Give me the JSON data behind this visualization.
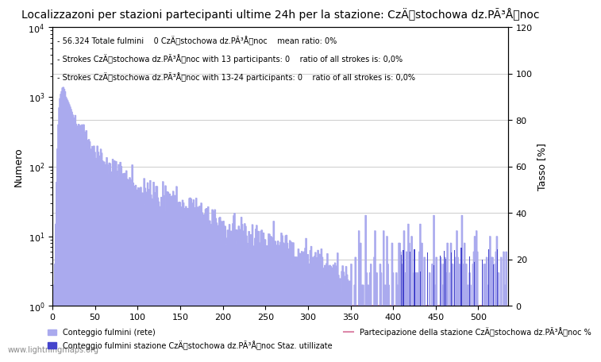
{
  "title": "Localizzazoni per stazioni partecipanti ultime 24h per la stazione: CzÄstochowa dz.PÃ³Ånoc",
  "annotation_line1": "56.324 Totale fulmini    0 CzÄstochowa dz.PÃ³Ånoc    mean ratio: 0%",
  "annotation_line2": "Strokes CzÄstochowa dz.PÃ³Ånoc with 13 participants: 0    ratio of all strokes is: 0,0%",
  "annotation_line3": "Strokes CzÄstochowa dz.PÃ³Ånoc with 13-24 participants: 0    ratio of all strokes is: 0,0%",
  "ylabel_left": "Numero",
  "ylabel_right": "Tasso [%]",
  "legend1": "Conteggio fulmini (rete)",
  "legend2": "Conteggio fulmini stazione CzÄstochowa dz.PÃ³Ånoc Staz. utillizate",
  "legend3": "Partecipazione della stazione CzÄstochowa dz.PÃ³Ånoc %",
  "watermark": "www.lightningmaps.org",
  "bar_color_light": "#aaaaee",
  "bar_color_dark": "#4444cc",
  "line_color": "#dd88aa",
  "ylim_right": [
    0,
    120
  ],
  "yticks_right": [
    0,
    20,
    40,
    60,
    80,
    100,
    120
  ],
  "xlim": [
    0,
    535
  ],
  "xticks": [
    0,
    50,
    100,
    150,
    200,
    250,
    300,
    350,
    400,
    450,
    500
  ],
  "title_fontsize": 10,
  "label_fontsize": 9,
  "tick_fontsize": 8,
  "annotation_fontsize": 7,
  "watermark_fontsize": 7
}
